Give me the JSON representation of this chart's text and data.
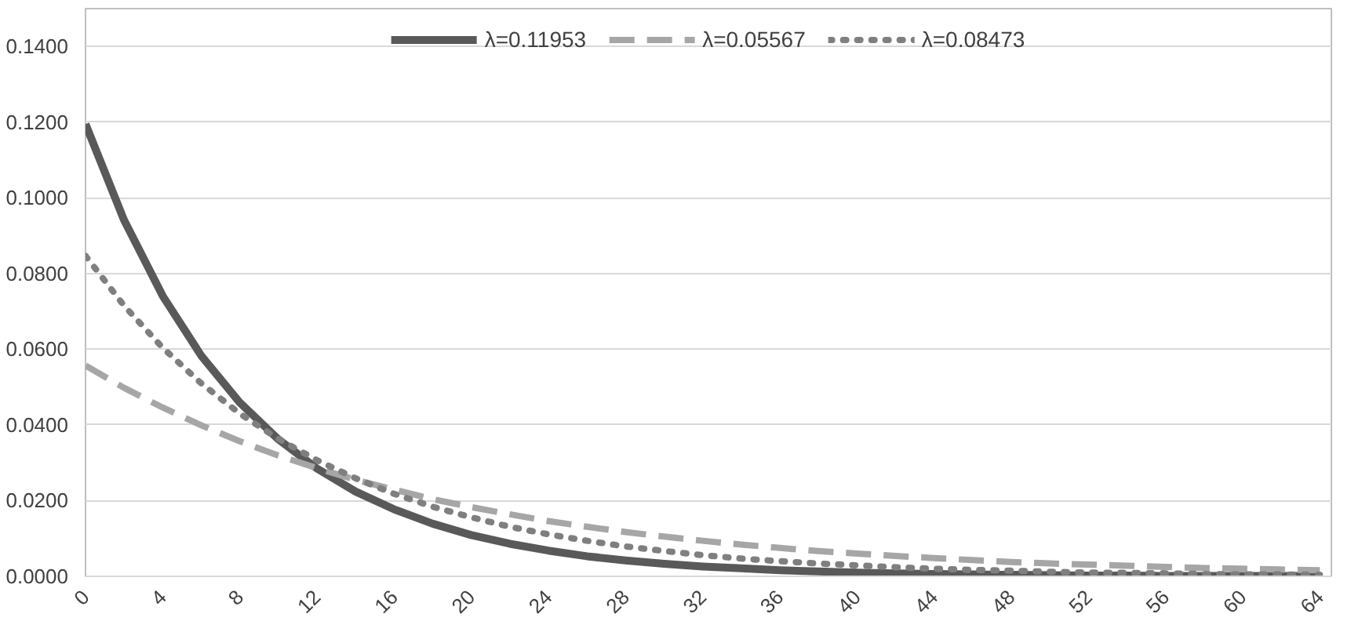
{
  "chart_data": {
    "type": "line",
    "legend": "top",
    "grid": "y",
    "xlim": [
      0,
      64.6
    ],
    "xticks": [
      0,
      4,
      8,
      12,
      16,
      20,
      24,
      28,
      32,
      36,
      40,
      44,
      48,
      52,
      56,
      60,
      64
    ],
    "ylim": [
      0,
      0.15
    ],
    "yticks": [
      {
        "value": 0,
        "label": "0.0000"
      },
      {
        "value": 0.02,
        "label": "0.0200"
      },
      {
        "value": 0.04,
        "label": "0.0400"
      },
      {
        "value": 0.06,
        "label": "0.0600"
      },
      {
        "value": 0.08,
        "label": "0.0800"
      },
      {
        "value": 0.1,
        "label": "0.1000"
      },
      {
        "value": 0.12,
        "label": "0.1200"
      },
      {
        "value": 0.14,
        "label": "0.1400"
      }
    ],
    "x": [
      0,
      2,
      4,
      6,
      8,
      10,
      12,
      14,
      16,
      18,
      20,
      22,
      24,
      26,
      28,
      30,
      32,
      34,
      36,
      38,
      40,
      42,
      44,
      46,
      48,
      50,
      52,
      54,
      56,
      58,
      60,
      62,
      64
    ],
    "series": [
      {
        "name": "λ=0.11953",
        "color": "#595959",
        "line_style": "solid",
        "values": [
          0.1195,
          0.0941,
          0.0741,
          0.0583,
          0.0459,
          0.0362,
          0.0285,
          0.0224,
          0.0177,
          0.0139,
          0.0109,
          0.0086,
          0.0068,
          0.0053,
          0.0042,
          0.0033,
          0.0026,
          0.0021,
          0.0016,
          0.0013,
          0.001,
          0.0008,
          0.0006,
          0.0005,
          0.0004,
          0.0003,
          0.0002,
          0.0002,
          0.0001,
          0.0001,
          0.0001,
          0.0001,
          0.0001
        ]
      },
      {
        "name": "λ=0.05567",
        "color": "#a6a6a6",
        "line_style": "dashed",
        "values": [
          0.0557,
          0.0498,
          0.0446,
          0.0399,
          0.0357,
          0.0319,
          0.0286,
          0.0255,
          0.0229,
          0.0204,
          0.0183,
          0.0164,
          0.0146,
          0.0131,
          0.0117,
          0.0105,
          0.0094,
          0.0084,
          0.0075,
          0.0067,
          0.006,
          0.0054,
          0.0048,
          0.0043,
          0.0038,
          0.0034,
          0.0031,
          0.0028,
          0.0025,
          0.0022,
          0.002,
          0.0018,
          0.0016
        ]
      },
      {
        "name": "λ=0.08473",
        "color": "#7f7f7f",
        "line_style": "dotted",
        "values": [
          0.0847,
          0.0715,
          0.0604,
          0.051,
          0.043,
          0.0363,
          0.0307,
          0.0259,
          0.0218,
          0.0184,
          0.0156,
          0.0131,
          0.0111,
          0.0094,
          0.0079,
          0.0067,
          0.0056,
          0.0047,
          0.004,
          0.0034,
          0.0029,
          0.0024,
          0.002,
          0.0017,
          0.0015,
          0.0012,
          0.001,
          0.0009,
          0.0008,
          0.0006,
          0.0005,
          0.0005,
          0.0004
        ]
      }
    ]
  }
}
